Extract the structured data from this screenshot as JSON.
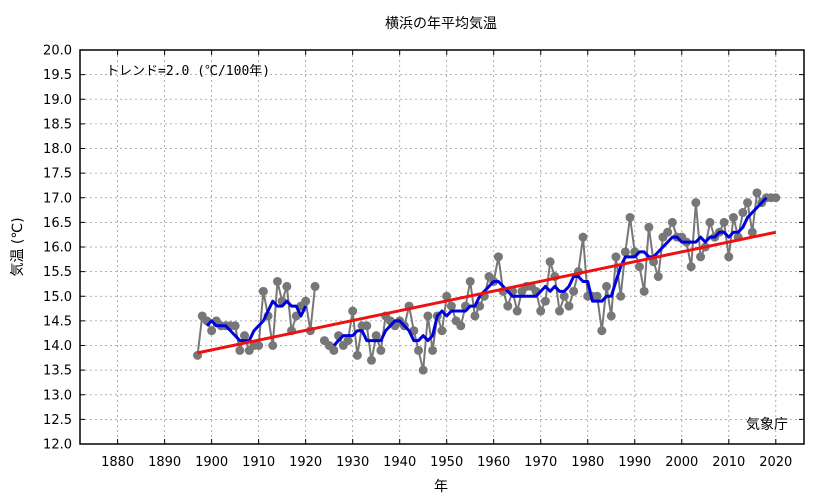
{
  "chart_data": {
    "type": "line",
    "title": "横浜の年平均気温",
    "xlabel": "年",
    "ylabel": "気温 (℃)",
    "annotation": "トレンド=2.0 (℃/100年)",
    "source": "気象庁",
    "xlim": [
      1872,
      2026
    ],
    "ylim": [
      12.0,
      20.0
    ],
    "x_ticks": [
      1880,
      1890,
      1900,
      1910,
      1920,
      1930,
      1940,
      1950,
      1960,
      1970,
      1980,
      1990,
      2000,
      2010,
      2020
    ],
    "y_ticks": [
      "12.0",
      "12.5",
      "13.0",
      "13.5",
      "14.0",
      "14.5",
      "15.0",
      "15.5",
      "16.0",
      "16.5",
      "17.0",
      "17.5",
      "18.0",
      "18.5",
      "19.0",
      "19.5",
      "20.0"
    ],
    "grid": true,
    "series": [
      {
        "role": "annual",
        "color": "#777777",
        "points": [
          [
            1897,
            13.8
          ],
          [
            1898,
            14.6
          ],
          [
            1899,
            14.5
          ],
          [
            1900,
            14.3
          ],
          [
            1901,
            14.5
          ],
          [
            1902,
            14.4
          ],
          [
            1903,
            14.4
          ],
          [
            1904,
            14.4
          ],
          [
            1905,
            14.4
          ],
          [
            1906,
            13.9
          ],
          [
            1907,
            14.2
          ],
          [
            1908,
            13.9
          ],
          [
            1909,
            14.0
          ],
          [
            1910,
            14.0
          ],
          [
            1911,
            15.1
          ],
          [
            1912,
            14.6
          ],
          [
            1913,
            14.0
          ],
          [
            1914,
            15.3
          ],
          [
            1915,
            14.9
          ],
          [
            1916,
            15.2
          ],
          [
            1917,
            14.3
          ],
          [
            1918,
            14.6
          ],
          [
            1919,
            14.8
          ],
          [
            1920,
            14.9
          ],
          [
            1921,
            14.3
          ],
          [
            1922,
            15.2
          ],
          [
            1924,
            14.1
          ],
          [
            1925,
            14.0
          ],
          [
            1926,
            13.9
          ],
          [
            1927,
            14.2
          ],
          [
            1928,
            14.0
          ],
          [
            1929,
            14.1
          ],
          [
            1930,
            14.7
          ],
          [
            1931,
            13.8
          ],
          [
            1932,
            14.4
          ],
          [
            1933,
            14.4
          ],
          [
            1934,
            13.7
          ],
          [
            1935,
            14.2
          ],
          [
            1936,
            13.9
          ],
          [
            1937,
            14.6
          ],
          [
            1938,
            14.5
          ],
          [
            1939,
            14.4
          ],
          [
            1940,
            14.5
          ],
          [
            1941,
            14.4
          ],
          [
            1942,
            14.8
          ],
          [
            1943,
            14.3
          ],
          [
            1944,
            13.9
          ],
          [
            1945,
            13.5
          ],
          [
            1946,
            14.6
          ],
          [
            1947,
            13.9
          ],
          [
            1948,
            14.6
          ],
          [
            1949,
            14.3
          ],
          [
            1950,
            15.0
          ],
          [
            1951,
            14.8
          ],
          [
            1952,
            14.5
          ],
          [
            1953,
            14.4
          ],
          [
            1954,
            14.8
          ],
          [
            1955,
            15.3
          ],
          [
            1956,
            14.6
          ],
          [
            1957,
            14.8
          ],
          [
            1958,
            15.0
          ],
          [
            1959,
            15.4
          ],
          [
            1960,
            15.3
          ],
          [
            1961,
            15.8
          ],
          [
            1962,
            15.1
          ],
          [
            1963,
            14.8
          ],
          [
            1964,
            15.1
          ],
          [
            1965,
            14.7
          ],
          [
            1966,
            15.1
          ],
          [
            1967,
            15.2
          ],
          [
            1968,
            15.2
          ],
          [
            1969,
            15.1
          ],
          [
            1970,
            14.7
          ],
          [
            1971,
            14.9
          ],
          [
            1972,
            15.7
          ],
          [
            1973,
            15.4
          ],
          [
            1974,
            14.7
          ],
          [
            1975,
            15.0
          ],
          [
            1976,
            14.8
          ],
          [
            1977,
            15.1
          ],
          [
            1978,
            15.5
          ],
          [
            1979,
            16.2
          ],
          [
            1980,
            15.0
          ],
          [
            1981,
            15.0
          ],
          [
            1982,
            15.0
          ],
          [
            1983,
            14.3
          ],
          [
            1984,
            15.2
          ],
          [
            1985,
            14.6
          ],
          [
            1986,
            15.8
          ],
          [
            1987,
            15.0
          ],
          [
            1988,
            15.9
          ],
          [
            1989,
            16.6
          ],
          [
            1990,
            15.9
          ],
          [
            1991,
            15.6
          ],
          [
            1992,
            15.1
          ],
          [
            1993,
            16.4
          ],
          [
            1994,
            15.7
          ],
          [
            1995,
            15.4
          ],
          [
            1996,
            16.2
          ],
          [
            1997,
            16.3
          ],
          [
            1998,
            16.5
          ],
          [
            1999,
            16.2
          ],
          [
            2000,
            16.2
          ],
          [
            2001,
            16.1
          ],
          [
            2002,
            15.6
          ],
          [
            2003,
            16.9
          ],
          [
            2004,
            15.8
          ],
          [
            2005,
            16.0
          ],
          [
            2006,
            16.5
          ],
          [
            2007,
            16.2
          ],
          [
            2008,
            16.3
          ],
          [
            2009,
            16.5
          ],
          [
            2010,
            15.8
          ],
          [
            2011,
            16.6
          ],
          [
            2012,
            16.2
          ],
          [
            2013,
            16.7
          ],
          [
            2014,
            16.9
          ],
          [
            2015,
            16.3
          ],
          [
            2016,
            17.1
          ],
          [
            2017,
            16.9
          ],
          [
            2018,
            17.0
          ],
          [
            2019,
            17.0
          ],
          [
            2020,
            17.0
          ]
        ]
      },
      {
        "role": "5-year moving average",
        "color": "#0000dd",
        "segments": [
          [
            [
              1899,
              14.4
            ],
            [
              1900,
              14.5
            ],
            [
              1901,
              14.4
            ],
            [
              1902,
              14.4
            ],
            [
              1903,
              14.4
            ],
            [
              1904,
              14.3
            ],
            [
              1905,
              14.2
            ],
            [
              1906,
              14.1
            ],
            [
              1907,
              14.1
            ],
            [
              1908,
              14.1
            ],
            [
              1909,
              14.3
            ],
            [
              1910,
              14.4
            ],
            [
              1911,
              14.5
            ],
            [
              1912,
              14.7
            ],
            [
              1913,
              14.9
            ],
            [
              1914,
              14.8
            ],
            [
              1915,
              14.8
            ],
            [
              1916,
              14.9
            ],
            [
              1917,
              14.8
            ],
            [
              1918,
              14.8
            ],
            [
              1919,
              14.6
            ],
            [
              1920,
              14.8
            ]
          ],
          [
            [
              1926,
              14.0
            ],
            [
              1927,
              14.1
            ],
            [
              1928,
              14.2
            ],
            [
              1929,
              14.2
            ],
            [
              1930,
              14.2
            ],
            [
              1931,
              14.3
            ],
            [
              1932,
              14.3
            ],
            [
              1933,
              14.1
            ],
            [
              1934,
              14.1
            ],
            [
              1935,
              14.1
            ],
            [
              1936,
              14.1
            ],
            [
              1937,
              14.3
            ],
            [
              1938,
              14.4
            ],
            [
              1939,
              14.5
            ],
            [
              1940,
              14.5
            ],
            [
              1941,
              14.4
            ],
            [
              1942,
              14.3
            ],
            [
              1943,
              14.1
            ],
            [
              1944,
              14.1
            ],
            [
              1945,
              14.2
            ],
            [
              1946,
              14.1
            ],
            [
              1947,
              14.2
            ],
            [
              1948,
              14.6
            ],
            [
              1949,
              14.7
            ],
            [
              1950,
              14.6
            ],
            [
              1951,
              14.7
            ],
            [
              1952,
              14.7
            ],
            [
              1953,
              14.7
            ],
            [
              1954,
              14.7
            ],
            [
              1955,
              14.8
            ],
            [
              1956,
              14.8
            ],
            [
              1957,
              15.0
            ],
            [
              1958,
              15.1
            ],
            [
              1959,
              15.2
            ],
            [
              1960,
              15.3
            ],
            [
              1961,
              15.3
            ],
            [
              1962,
              15.2
            ],
            [
              1963,
              15.1
            ],
            [
              1964,
              15.0
            ],
            [
              1965,
              15.0
            ],
            [
              1966,
              15.0
            ],
            [
              1967,
              15.0
            ],
            [
              1968,
              15.0
            ],
            [
              1969,
              15.0
            ],
            [
              1970,
              15.1
            ],
            [
              1971,
              15.2
            ],
            [
              1972,
              15.1
            ],
            [
              1973,
              15.2
            ],
            [
              1974,
              15.1
            ],
            [
              1975,
              15.1
            ],
            [
              1976,
              15.2
            ],
            [
              1977,
              15.4
            ],
            [
              1978,
              15.4
            ],
            [
              1979,
              15.3
            ],
            [
              1980,
              15.3
            ],
            [
              1981,
              14.9
            ],
            [
              1982,
              14.9
            ],
            [
              1983,
              14.9
            ],
            [
              1984,
              15.0
            ],
            [
              1985,
              15.0
            ],
            [
              1986,
              15.3
            ],
            [
              1987,
              15.6
            ],
            [
              1988,
              15.8
            ],
            [
              1989,
              15.8
            ],
            [
              1990,
              15.8
            ],
            [
              1991,
              15.9
            ],
            [
              1992,
              15.9
            ],
            [
              1993,
              15.8
            ],
            [
              1994,
              15.8
            ],
            [
              1995,
              15.9
            ],
            [
              1996,
              16.0
            ],
            [
              1997,
              16.1
            ],
            [
              1998,
              16.2
            ],
            [
              1999,
              16.2
            ],
            [
              2000,
              16.1
            ],
            [
              2001,
              16.1
            ],
            [
              2002,
              16.1
            ],
            [
              2003,
              16.1
            ],
            [
              2004,
              16.2
            ],
            [
              2005,
              16.1
            ],
            [
              2006,
              16.2
            ],
            [
              2007,
              16.2
            ],
            [
              2008,
              16.3
            ],
            [
              2009,
              16.3
            ],
            [
              2010,
              16.2
            ],
            [
              2011,
              16.3
            ],
            [
              2012,
              16.3
            ],
            [
              2013,
              16.4
            ],
            [
              2014,
              16.6
            ],
            [
              2015,
              16.7
            ],
            [
              2016,
              16.8
            ],
            [
              2017,
              16.9
            ],
            [
              2018,
              17.0
            ]
          ]
        ]
      },
      {
        "role": "trend",
        "color": "#ee1111",
        "points": [
          [
            1897,
            13.85
          ],
          [
            2020,
            16.3
          ]
        ]
      }
    ]
  }
}
